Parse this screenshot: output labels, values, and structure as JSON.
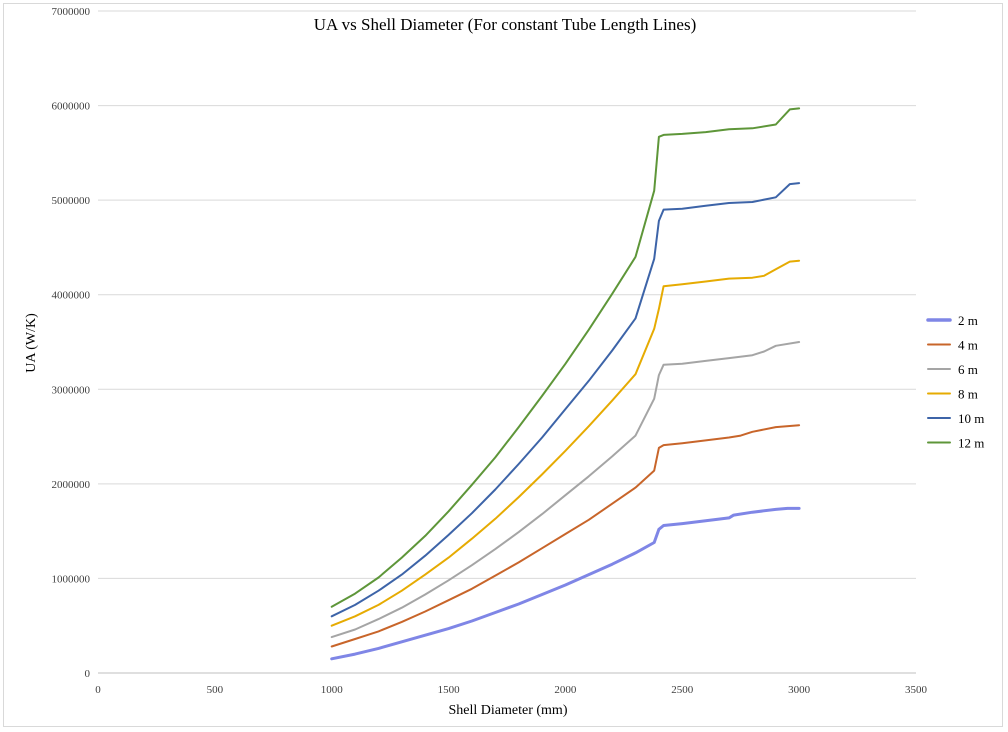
{
  "chart_data": {
    "type": "line",
    "title": "UA vs Shell Diameter (For constant Tube Length Lines)",
    "xlabel": "Shell Diameter (mm)",
    "ylabel": "UA (W/K)",
    "xlim": [
      0,
      3500
    ],
    "ylim": [
      0,
      7000000
    ],
    "x_ticks": [
      "0",
      "500",
      "1000",
      "1500",
      "2000",
      "2500",
      "3000",
      "3500"
    ],
    "y_ticks": [
      "0",
      "1000000",
      "2000000",
      "3000000",
      "4000000",
      "5000000",
      "6000000",
      "7000000"
    ],
    "grid": "horizontal",
    "legend_position": "right",
    "series": [
      {
        "name": "2 m",
        "color": "#7f86e6",
        "x": [
          1000,
          1100,
          1200,
          1300,
          1400,
          1500,
          1600,
          1700,
          1800,
          1900,
          2000,
          2100,
          2200,
          2300,
          2380,
          2400,
          2420,
          2500,
          2600,
          2700,
          2720,
          2800,
          2900,
          2950,
          3000
        ],
        "y": [
          150000,
          200000,
          260000,
          330000,
          400000,
          470000,
          550000,
          640000,
          730000,
          830000,
          930000,
          1040000,
          1150000,
          1270000,
          1380000,
          1520000,
          1560000,
          1580000,
          1610000,
          1640000,
          1670000,
          1700000,
          1730000,
          1740000,
          1740000
        ]
      },
      {
        "name": "4 m",
        "color": "#c8652a",
        "x": [
          1000,
          1100,
          1200,
          1300,
          1400,
          1500,
          1600,
          1700,
          1800,
          1900,
          2000,
          2100,
          2200,
          2300,
          2380,
          2400,
          2420,
          2500,
          2600,
          2700,
          2750,
          2800,
          2900,
          3000
        ],
        "y": [
          280000,
          360000,
          440000,
          540000,
          650000,
          770000,
          890000,
          1030000,
          1170000,
          1320000,
          1470000,
          1620000,
          1790000,
          1960000,
          2140000,
          2380000,
          2410000,
          2430000,
          2460000,
          2490000,
          2510000,
          2550000,
          2600000,
          2620000
        ]
      },
      {
        "name": "6 m",
        "color": "#a5a5a5",
        "x": [
          1000,
          1100,
          1200,
          1300,
          1400,
          1500,
          1600,
          1700,
          1800,
          1900,
          2000,
          2100,
          2200,
          2300,
          2380,
          2400,
          2420,
          2500,
          2600,
          2700,
          2800,
          2850,
          2900,
          3000
        ],
        "y": [
          380000,
          460000,
          570000,
          690000,
          830000,
          980000,
          1140000,
          1310000,
          1490000,
          1680000,
          1880000,
          2080000,
          2290000,
          2510000,
          2900000,
          3150000,
          3260000,
          3270000,
          3300000,
          3330000,
          3360000,
          3400000,
          3460000,
          3500000
        ]
      },
      {
        "name": "8 m",
        "color": "#e6ab02",
        "x": [
          1000,
          1100,
          1200,
          1300,
          1400,
          1500,
          1600,
          1700,
          1800,
          1900,
          2000,
          2100,
          2200,
          2300,
          2380,
          2400,
          2420,
          2500,
          2600,
          2700,
          2800,
          2850,
          2900,
          2960,
          3000
        ],
        "y": [
          500000,
          600000,
          720000,
          870000,
          1040000,
          1220000,
          1420000,
          1630000,
          1860000,
          2100000,
          2350000,
          2610000,
          2880000,
          3160000,
          3640000,
          3850000,
          4090000,
          4110000,
          4140000,
          4170000,
          4180000,
          4200000,
          4270000,
          4350000,
          4360000
        ]
      },
      {
        "name": "10 m",
        "color": "#3d64a8",
        "x": [
          1000,
          1100,
          1200,
          1300,
          1400,
          1500,
          1600,
          1700,
          1800,
          1900,
          2000,
          2100,
          2200,
          2300,
          2380,
          2400,
          2420,
          2500,
          2600,
          2700,
          2800,
          2900,
          2960,
          3000
        ],
        "y": [
          600000,
          720000,
          870000,
          1040000,
          1240000,
          1460000,
          1690000,
          1940000,
          2210000,
          2490000,
          2790000,
          3090000,
          3410000,
          3750000,
          4380000,
          4780000,
          4900000,
          4910000,
          4940000,
          4970000,
          4980000,
          5030000,
          5170000,
          5180000
        ]
      },
      {
        "name": "12 m",
        "color": "#5e9639",
        "x": [
          1000,
          1100,
          1200,
          1300,
          1400,
          1500,
          1600,
          1700,
          1800,
          1900,
          2000,
          2100,
          2200,
          2300,
          2380,
          2400,
          2420,
          2500,
          2600,
          2700,
          2800,
          2900,
          2960,
          3000
        ],
        "y": [
          700000,
          840000,
          1010000,
          1220000,
          1450000,
          1710000,
          1990000,
          2280000,
          2600000,
          2930000,
          3270000,
          3630000,
          4010000,
          4400000,
          5100000,
          5670000,
          5690000,
          5700000,
          5720000,
          5750000,
          5760000,
          5800000,
          5960000,
          5970000
        ]
      }
    ]
  }
}
